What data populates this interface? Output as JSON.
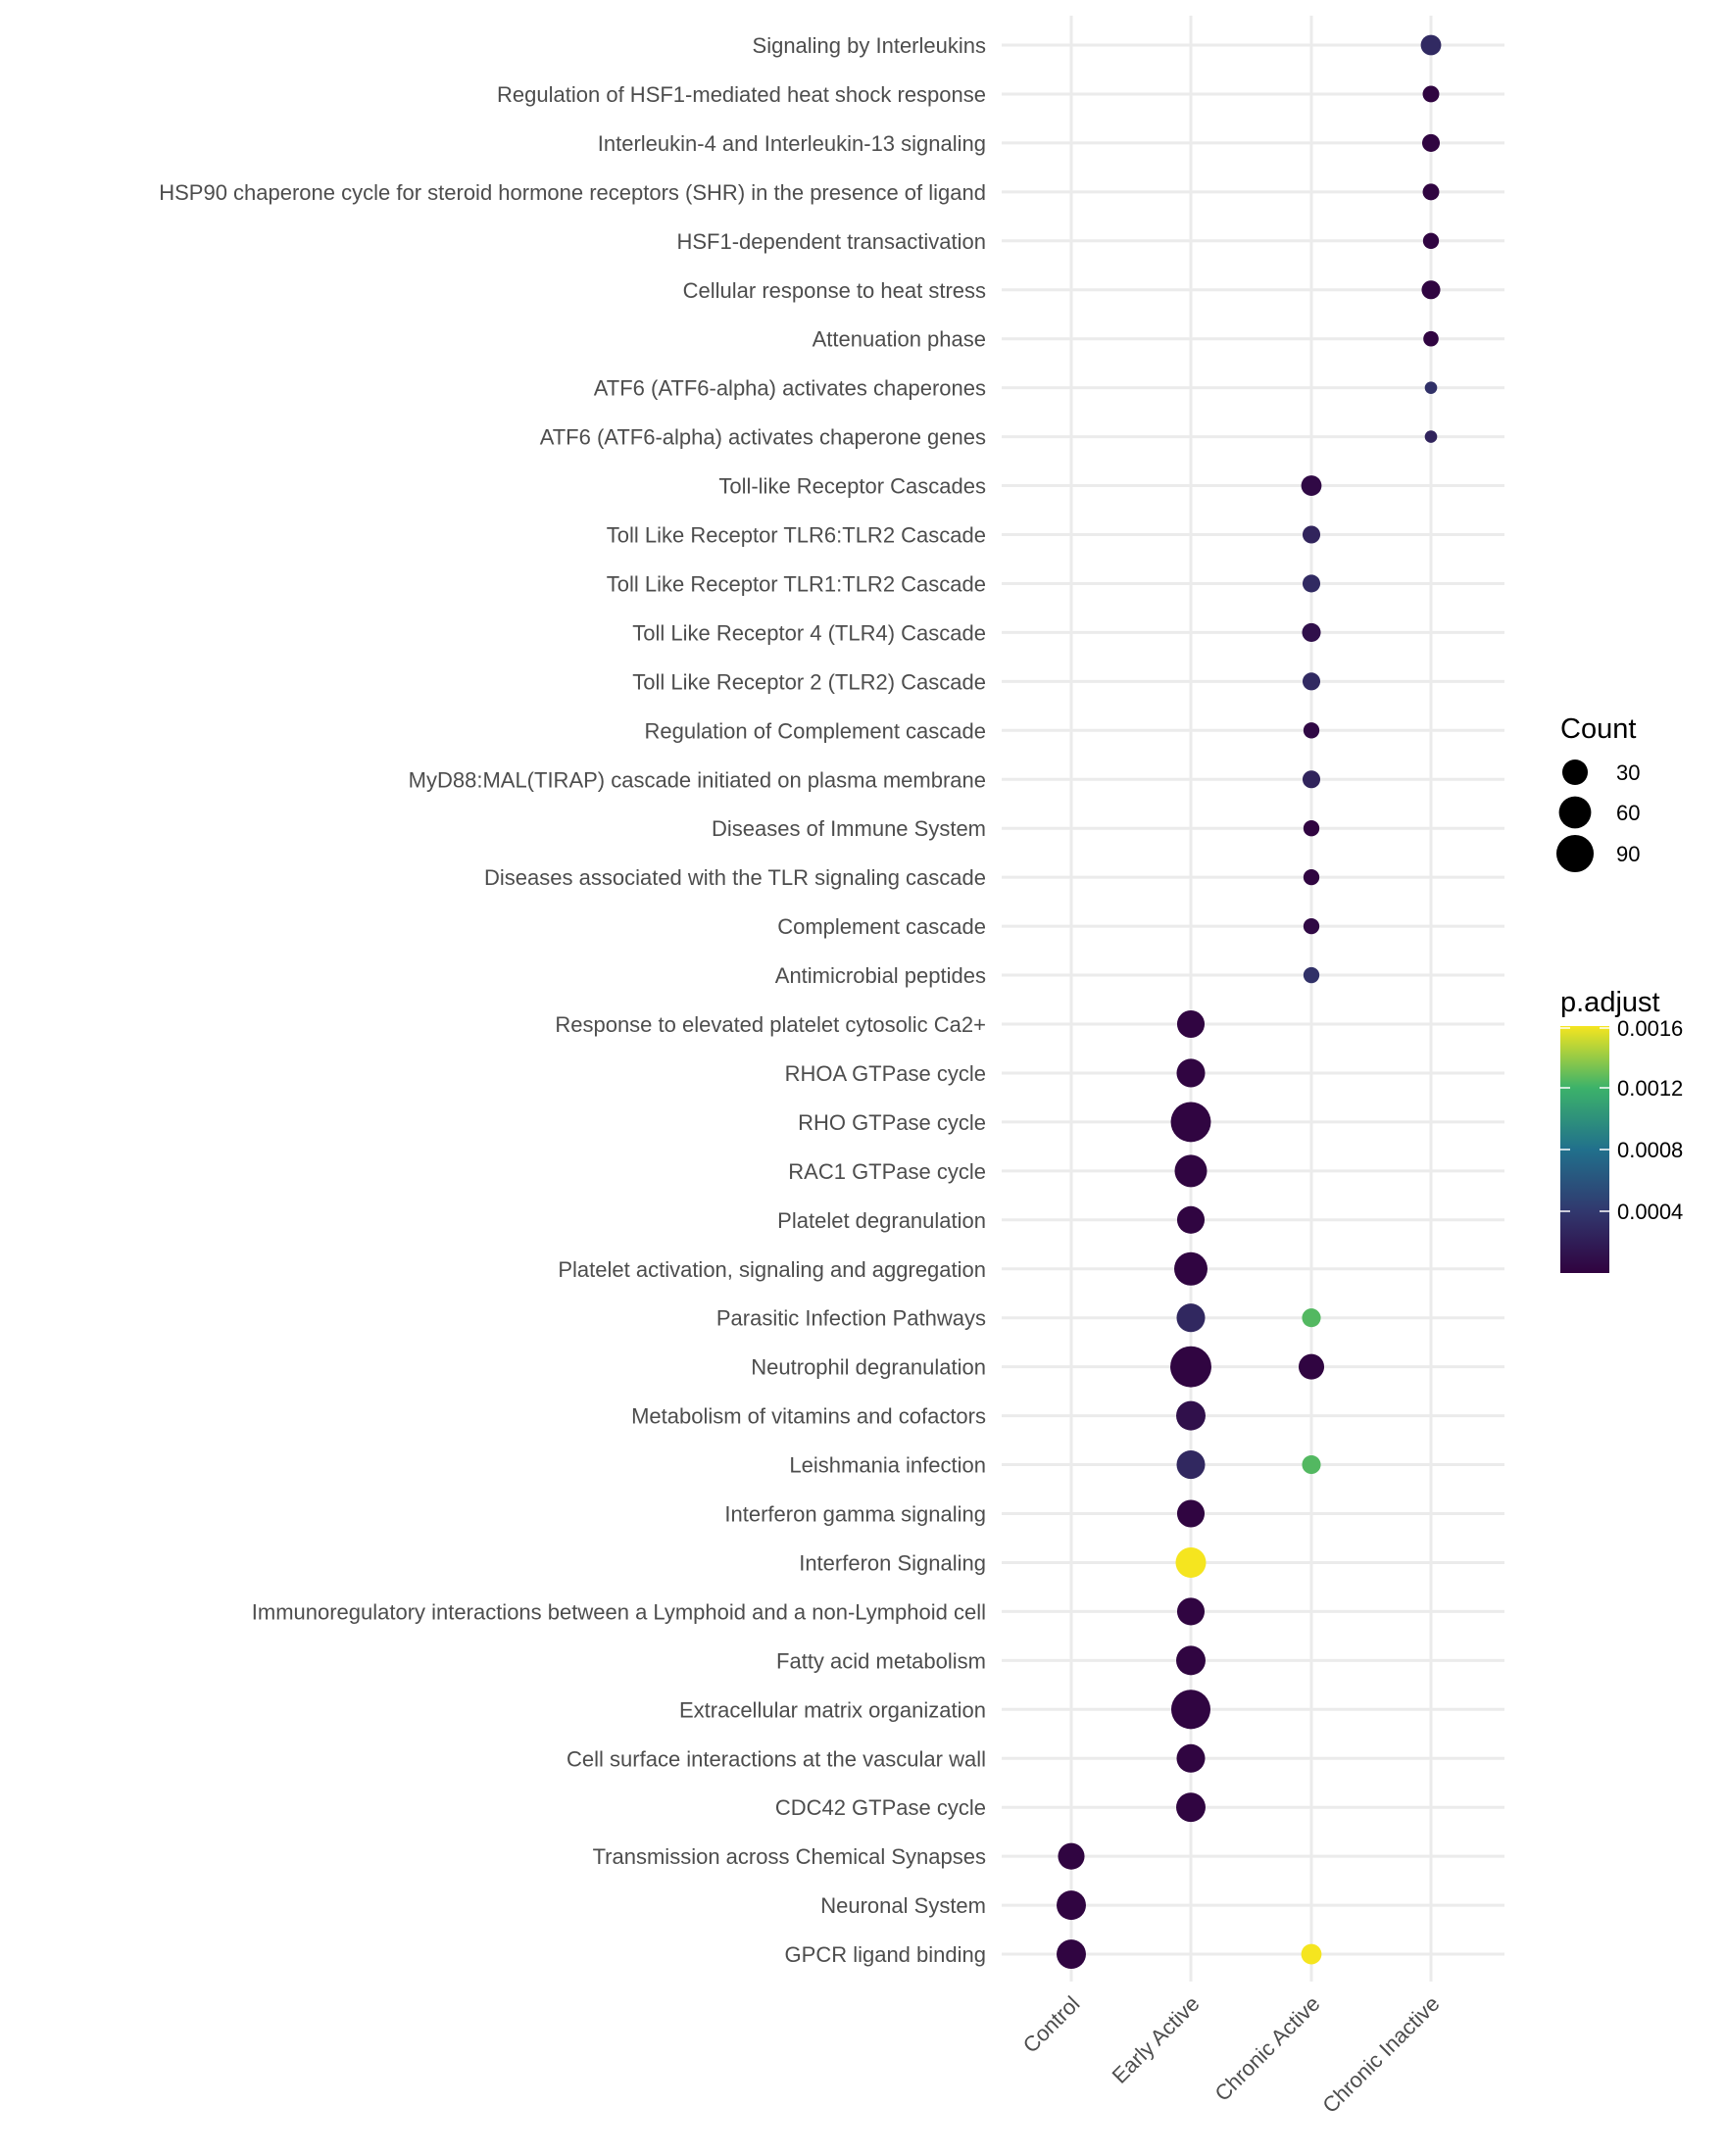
{
  "chart_data": {
    "type": "scatter",
    "subtype": "dot-plot",
    "title": "",
    "xlabel": "",
    "ylabel": "",
    "grid": true,
    "legend_position": "right",
    "x_categories": [
      "Control",
      "Early Active",
      "Chronic Active",
      "Chronic Inactive"
    ],
    "y_categories": [
      "Signaling by Interleukins",
      "Regulation of HSF1-mediated heat shock response",
      "Interleukin-4 and Interleukin-13 signaling",
      "HSP90 chaperone cycle for steroid hormone receptors (SHR) in the presence of ligand",
      "HSF1-dependent transactivation",
      "Cellular response to heat stress",
      "Attenuation phase",
      "ATF6 (ATF6-alpha) activates chaperones",
      "ATF6 (ATF6-alpha) activates chaperone genes",
      "Toll-like Receptor Cascades",
      "Toll Like Receptor TLR6:TLR2 Cascade",
      "Toll Like Receptor TLR1:TLR2 Cascade",
      "Toll Like Receptor 4 (TLR4) Cascade",
      "Toll Like Receptor 2 (TLR2) Cascade",
      "Regulation of Complement cascade",
      "MyD88:MAL(TIRAP) cascade initiated on plasma membrane",
      "Diseases of Immune System",
      "Diseases associated with the TLR signaling cascade",
      "Complement cascade",
      "Antimicrobial peptides",
      "Response to elevated platelet cytosolic Ca2+",
      "RHOA GTPase cycle",
      "RHO GTPase cycle",
      "RAC1 GTPase cycle",
      "Platelet degranulation",
      "Platelet activation, signaling and aggregation",
      "Parasitic Infection Pathways",
      "Neutrophil degranulation",
      "Metabolism of vitamins and cofactors",
      "Leishmania infection",
      "Interferon gamma signaling",
      "Interferon Signaling",
      "Immunoregulatory interactions between a Lymphoid and a non-Lymphoid cell",
      "Fatty acid metabolism",
      "Extracellular matrix organization",
      "Cell surface interactions at the vascular wall",
      "CDC42 GTPase cycle",
      "Transmission across Chemical Synapses",
      "Neuronal System",
      "GPCR ligand binding"
    ],
    "points": [
      {
        "x": "Chronic Inactive",
        "y": "Signaling by Interleukins",
        "count": 14,
        "p_adjust": 0.0003
      },
      {
        "x": "Chronic Inactive",
        "y": "Regulation of HSF1-mediated heat shock response",
        "count": 6,
        "p_adjust": 2e-05
      },
      {
        "x": "Chronic Inactive",
        "y": "Interleukin-4 and Interleukin-13 signaling",
        "count": 8,
        "p_adjust": 2e-05
      },
      {
        "x": "Chronic Inactive",
        "y": "HSP90 chaperone cycle for steroid hormone receptors (SHR) in the presence of ligand",
        "count": 6,
        "p_adjust": 2e-05
      },
      {
        "x": "Chronic Inactive",
        "y": "HSF1-dependent transactivation",
        "count": 5,
        "p_adjust": 2e-05
      },
      {
        "x": "Chronic Inactive",
        "y": "Cellular response to heat stress",
        "count": 10,
        "p_adjust": 2e-05
      },
      {
        "x": "Chronic Inactive",
        "y": "Attenuation phase",
        "count": 4,
        "p_adjust": 2e-05
      },
      {
        "x": "Chronic Inactive",
        "y": "ATF6 (ATF6-alpha) activates chaperones",
        "count": 1,
        "p_adjust": 0.00035
      },
      {
        "x": "Chronic Inactive",
        "y": "ATF6 (ATF6-alpha) activates chaperone genes",
        "count": 1,
        "p_adjust": 0.00025
      },
      {
        "x": "Chronic Active",
        "y": "Toll-like Receptor Cascades",
        "count": 14,
        "p_adjust": 5e-05
      },
      {
        "x": "Chronic Active",
        "y": "Toll Like Receptor TLR6:TLR2 Cascade",
        "count": 8,
        "p_adjust": 0.00025
      },
      {
        "x": "Chronic Active",
        "y": "Toll Like Receptor TLR1:TLR2 Cascade",
        "count": 8,
        "p_adjust": 0.0003
      },
      {
        "x": "Chronic Active",
        "y": "Toll Like Receptor 4 (TLR4) Cascade",
        "count": 10,
        "p_adjust": 0.0001
      },
      {
        "x": "Chronic Active",
        "y": "Toll Like Receptor 2 (TLR2) Cascade",
        "count": 8,
        "p_adjust": 0.0003
      },
      {
        "x": "Chronic Active",
        "y": "Regulation of Complement cascade",
        "count": 5,
        "p_adjust": 5e-05
      },
      {
        "x": "Chronic Active",
        "y": "MyD88:MAL(TIRAP) cascade initiated on plasma membrane",
        "count": 8,
        "p_adjust": 0.00025
      },
      {
        "x": "Chronic Active",
        "y": "Diseases of Immune System",
        "count": 5,
        "p_adjust": 2e-05
      },
      {
        "x": "Chronic Active",
        "y": "Diseases associated with the TLR signaling cascade",
        "count": 5,
        "p_adjust": 2e-05
      },
      {
        "x": "Chronic Active",
        "y": "Complement cascade",
        "count": 5,
        "p_adjust": 5e-05
      },
      {
        "x": "Chronic Active",
        "y": "Antimicrobial peptides",
        "count": 5,
        "p_adjust": 0.00035
      },
      {
        "x": "Early Active",
        "y": "Response to elevated platelet cytosolic Ca2+",
        "count": 38,
        "p_adjust": 2e-05
      },
      {
        "x": "Early Active",
        "y": "RHOA GTPase cycle",
        "count": 42,
        "p_adjust": 2e-05
      },
      {
        "x": "Early Active",
        "y": "RHO GTPase cycle",
        "count": 109,
        "p_adjust": 2e-05
      },
      {
        "x": "Early Active",
        "y": "RAC1 GTPase cycle",
        "count": 61,
        "p_adjust": 2e-05
      },
      {
        "x": "Early Active",
        "y": "Platelet degranulation",
        "count": 38,
        "p_adjust": 2e-05
      },
      {
        "x": "Early Active",
        "y": "Platelet activation, signaling and aggregation",
        "count": 66,
        "p_adjust": 2e-05
      },
      {
        "x": "Early Active",
        "y": "Parasitic Infection Pathways",
        "count": 42,
        "p_adjust": 0.00028
      },
      {
        "x": "Chronic Active",
        "y": "Parasitic Infection Pathways",
        "count": 10,
        "p_adjust": 0.00125
      },
      {
        "x": "Early Active",
        "y": "Neutrophil degranulation",
        "count": 116,
        "p_adjust": 2e-05
      },
      {
        "x": "Chronic Active",
        "y": "Neutrophil degranulation",
        "count": 30,
        "p_adjust": 2e-05
      },
      {
        "x": "Early Active",
        "y": "Metabolism of vitamins and cofactors",
        "count": 46,
        "p_adjust": 0.0001
      },
      {
        "x": "Early Active",
        "y": "Leishmania infection",
        "count": 42,
        "p_adjust": 0.00028
      },
      {
        "x": "Chronic Active",
        "y": "Leishmania infection",
        "count": 10,
        "p_adjust": 0.00125
      },
      {
        "x": "Early Active",
        "y": "Interferon gamma signaling",
        "count": 38,
        "p_adjust": 2e-05
      },
      {
        "x": "Early Active",
        "y": "Interferon Signaling",
        "count": 51,
        "p_adjust": 0.0016
      },
      {
        "x": "Early Active",
        "y": "Immunoregulatory interactions between a Lymphoid and a non-Lymphoid cell",
        "count": 38,
        "p_adjust": 2e-05
      },
      {
        "x": "Early Active",
        "y": "Fatty acid metabolism",
        "count": 46,
        "p_adjust": 2e-05
      },
      {
        "x": "Early Active",
        "y": "Extracellular matrix organization",
        "count": 103,
        "p_adjust": 2e-05
      },
      {
        "x": "Early Active",
        "y": "Cell surface interactions at the vascular wall",
        "count": 42,
        "p_adjust": 2e-05
      },
      {
        "x": "Early Active",
        "y": "CDC42 GTPase cycle",
        "count": 46,
        "p_adjust": 2e-05
      },
      {
        "x": "Control",
        "y": "Transmission across Chemical Synapses",
        "count": 34,
        "p_adjust": 2e-05
      },
      {
        "x": "Control",
        "y": "Neuronal System",
        "count": 46,
        "p_adjust": 2e-05
      },
      {
        "x": "Control",
        "y": "GPCR ligand binding",
        "count": 46,
        "p_adjust": 2e-05
      },
      {
        "x": "Chronic Active",
        "y": "GPCR ligand binding",
        "count": 14,
        "p_adjust": 0.0016
      }
    ],
    "size_legend": {
      "title": "Count",
      "breaks": [
        30,
        60,
        90
      ]
    },
    "color_legend": {
      "title": "p.adjust",
      "breaks": [
        0.0016,
        0.0012,
        0.0008,
        0.0004
      ],
      "break_labels": [
        "0.0016",
        "0.0012",
        "0.0008",
        "0.0004"
      ],
      "range": [
        0.0,
        0.0016
      ],
      "palette": "viridis",
      "colors": [
        "#440154",
        "#3b528b",
        "#21908c",
        "#5dc863",
        "#fde725"
      ]
    },
    "point_colors": {
      "low": "#330042",
      "high": "#f3e42a"
    }
  }
}
